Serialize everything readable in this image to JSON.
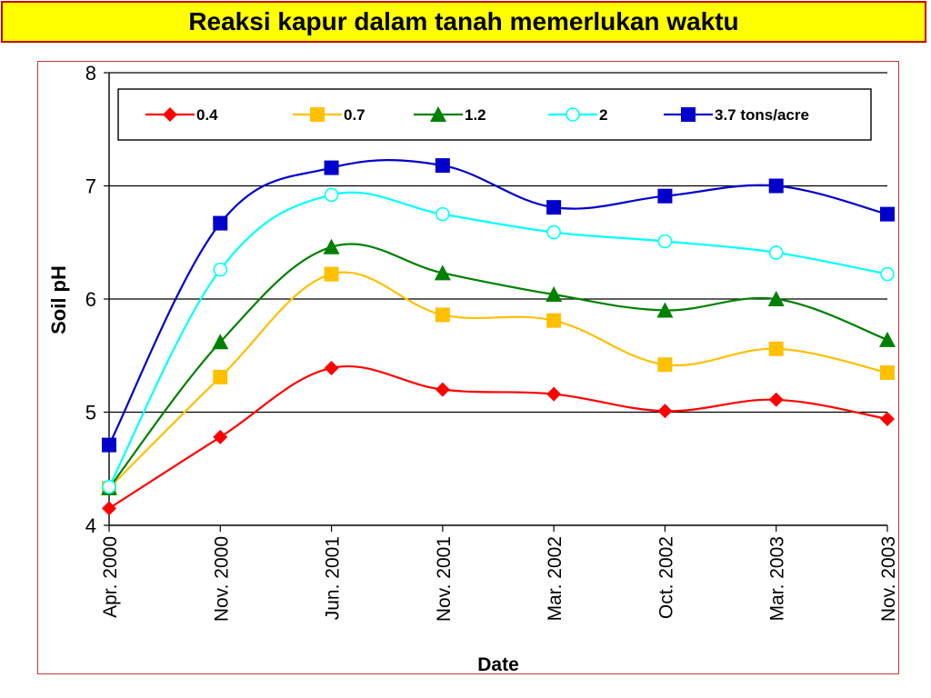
{
  "slide": {
    "title": "Reaksi kapur dalam tanah memerlukan waktu"
  },
  "colors": {
    "title_bg": "#ffff00",
    "title_border": "#cc0000",
    "frame_border": "#cc3333"
  },
  "chart_data": {
    "type": "line",
    "xlabel": "Date",
    "ylabel": "Soil pH",
    "ylim": [
      4,
      8
    ],
    "yticks": [
      4,
      5,
      6,
      7,
      8
    ],
    "grid": "horizontal",
    "legend_position": "top",
    "categories": [
      "Apr. 2000",
      "Nov. 2000",
      "Jun. 2001",
      "Nov. 2001",
      "Mar. 2002",
      "Oct. 2002",
      "Mar. 2003",
      "Nov. 2003"
    ],
    "series": [
      {
        "name": "0.4",
        "color": "#ff0000",
        "marker": "diamond",
        "values": [
          4.15,
          4.78,
          5.39,
          5.2,
          5.16,
          5.01,
          5.11,
          4.94
        ]
      },
      {
        "name": "0.7",
        "color": "#ffc000",
        "marker": "square",
        "values": [
          4.33,
          5.31,
          6.22,
          5.86,
          5.81,
          5.42,
          5.56,
          5.35
        ]
      },
      {
        "name": "1.2",
        "color": "#008000",
        "marker": "triangle",
        "values": [
          4.33,
          5.62,
          6.46,
          6.23,
          6.04,
          5.9,
          6.0,
          5.64
        ]
      },
      {
        "name": "2",
        "color": "#00ffff",
        "marker": "circle-open",
        "values": [
          4.34,
          6.26,
          6.92,
          6.75,
          6.59,
          6.51,
          6.41,
          6.22
        ]
      },
      {
        "name": "3.7 tons/acre",
        "color": "#0000cc",
        "marker": "square",
        "values": [
          4.71,
          6.67,
          7.16,
          7.18,
          6.81,
          6.91,
          7.0,
          6.75
        ]
      }
    ]
  }
}
